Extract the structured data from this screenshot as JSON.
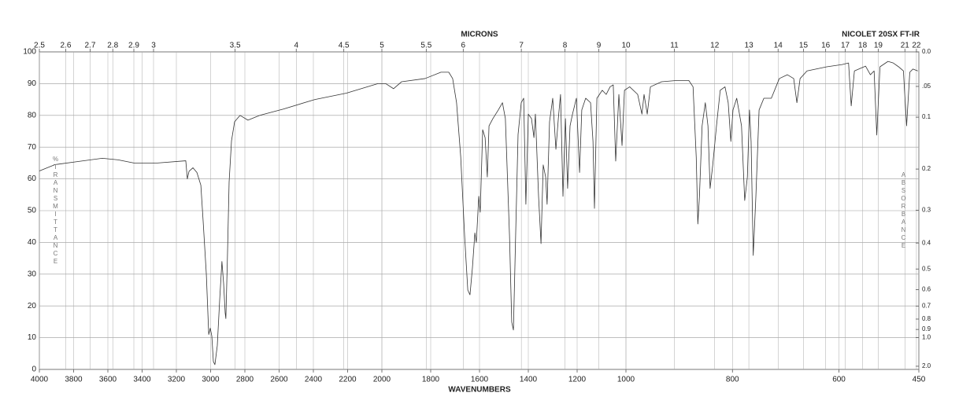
{
  "chart_data": {
    "type": "line",
    "title": "NICOLET 20SX FT-IR",
    "x_label": "WAVENUMBERS",
    "y_label": "%TRANSMITTANCE",
    "xlim": [
      4000,
      450
    ],
    "ylim": [
      0,
      100
    ],
    "x_scale": "piecewise-linear",
    "x_breaks": [
      2000,
      1000
    ],
    "xticks": [
      4000,
      3800,
      3600,
      3400,
      3200,
      3000,
      2800,
      2600,
      2400,
      2200,
      2000,
      1800,
      1600,
      1400,
      1200,
      1000,
      800,
      600,
      450
    ],
    "yticks": [
      0,
      10,
      20,
      30,
      40,
      50,
      60,
      70,
      80,
      90,
      100
    ],
    "grid": true,
    "color": "#333333",
    "top_axis": {
      "label": "MICRONS",
      "ticks": [
        2.5,
        2.6,
        2.7,
        2.8,
        2.9,
        3,
        3.5,
        4,
        4.5,
        5,
        5.5,
        6,
        7,
        8,
        9,
        10,
        11,
        12,
        13,
        14,
        15,
        16,
        17,
        18,
        19,
        21,
        22
      ]
    },
    "right_axis": {
      "label": "ABSORBANCE",
      "ticks": [
        {
          "value": 0,
          "label": "0.0"
        },
        {
          "value": 0.05,
          "label": ".05"
        },
        0.1,
        0.2,
        0.3,
        0.4,
        0.5,
        0.6,
        0.7,
        0.8,
        0.9,
        {
          "value": 1,
          "label": "1.0"
        },
        {
          "value": 2,
          "label": "2.0"
        }
      ]
    },
    "x": [
      4000,
      3908,
      3770,
      3632,
      3540,
      3448,
      3310,
      3145,
      3136,
      3126,
      3103,
      3080,
      3057,
      3044,
      3025,
      3011,
      3002,
      2993,
      2984,
      2975,
      2961,
      2947,
      2934,
      2924,
      2915,
      2911,
      2902,
      2892,
      2878,
      2860,
      2828,
      2782,
      2713,
      2575,
      2391,
      2207,
      2023,
      1984,
      1952,
      1919,
      1823,
      1758,
      1726,
      1710,
      1694,
      1677,
      1661,
      1648,
      1639,
      1629,
      1619,
      1613,
      1603,
      1597,
      1587,
      1577,
      1568,
      1561,
      1545,
      1523,
      1506,
      1494,
      1477,
      1468,
      1461,
      1452,
      1442,
      1429,
      1419,
      1410,
      1400,
      1387,
      1377,
      1371,
      1358,
      1348,
      1339,
      1329,
      1323,
      1313,
      1300,
      1287,
      1277,
      1268,
      1258,
      1248,
      1239,
      1229,
      1219,
      1203,
      1190,
      1181,
      1165,
      1145,
      1135,
      1129,
      1119,
      1097,
      1081,
      1065,
      1052,
      1042,
      1029,
      1016,
      1006,
      993,
      978,
      970,
      966,
      960,
      954,
      933,
      904,
      882,
      874,
      868,
      865,
      862,
      857,
      851,
      846,
      842,
      837,
      830,
      823,
      814,
      808,
      803,
      799,
      792,
      783,
      777,
      772,
      768,
      765,
      761,
      756,
      750,
      741,
      727,
      712,
      697,
      685,
      679,
      673,
      660,
      623,
      594,
      582,
      577,
      571,
      550,
      541,
      534,
      529,
      523,
      508,
      498,
      488,
      479,
      473,
      467,
      461,
      452
    ],
    "values": [
      62.5,
      64.5,
      65.5,
      66.5,
      66,
      65,
      65,
      65.7,
      60,
      62.4,
      63.5,
      62,
      58,
      47,
      30,
      11,
      13,
      10.5,
      2.5,
      1.5,
      7.5,
      22,
      34,
      27,
      17.8,
      16,
      35,
      59,
      72,
      78,
      80,
      78.5,
      80,
      82,
      85,
      87,
      90,
      90,
      88.4,
      90.6,
      91.6,
      93.6,
      93.6,
      91.6,
      84,
      67,
      42,
      25,
      23.5,
      32,
      43,
      40,
      54.5,
      49.5,
      75.5,
      73,
      60.6,
      76.7,
      79,
      81.7,
      84,
      79,
      42,
      14.9,
      12.4,
      42,
      74,
      84,
      85.4,
      52,
      80.4,
      79,
      73,
      80.4,
      54.5,
      39.6,
      64.4,
      60.6,
      52,
      78,
      85.4,
      69.3,
      79,
      86.6,
      54.5,
      79,
      57,
      76.7,
      80.4,
      85.4,
      62,
      81.7,
      85.4,
      84,
      71.8,
      50.7,
      85.4,
      87.9,
      86.6,
      89,
      89.6,
      65.6,
      86.6,
      70.5,
      87.9,
      89,
      86.6,
      80.4,
      86.6,
      80.4,
      89,
      90.6,
      91,
      91,
      89,
      66.8,
      45.8,
      54.5,
      76.7,
      84,
      76.7,
      57,
      64.4,
      76.7,
      87.9,
      89,
      84,
      71.8,
      81.7,
      85.4,
      76.7,
      53.2,
      60.6,
      81.7,
      71.8,
      35.9,
      54.5,
      81.7,
      85.4,
      85.4,
      91.6,
      92.8,
      91.6,
      84,
      91.6,
      94,
      95.3,
      96,
      96.5,
      83,
      94,
      95.5,
      92.8,
      94,
      73.8,
      95.3,
      97,
      96.5,
      95.3,
      94,
      76.7,
      93.6,
      94.6,
      94
    ]
  }
}
